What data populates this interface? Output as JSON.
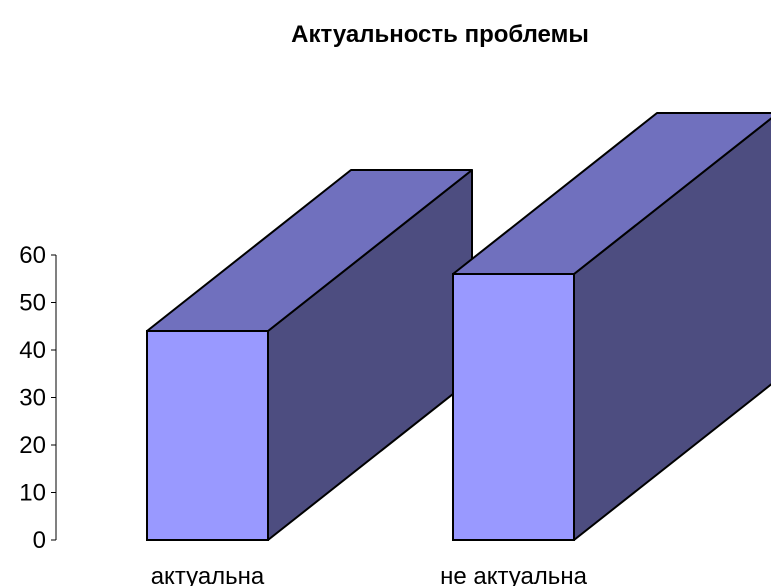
{
  "chart_data": {
    "type": "bar",
    "title": "Актуальность проблемы",
    "categories": [
      "актуальна",
      "не актуальна"
    ],
    "values": [
      44,
      56
    ],
    "ylim": [
      0,
      60
    ],
    "yticks": [
      0,
      10,
      20,
      30,
      40,
      50,
      60
    ],
    "grid": false,
    "legend": "none",
    "style": "3d",
    "colors": {
      "front": "#9999FF",
      "top": "#7070BE",
      "side": "#4D4D80",
      "outline": "#000000"
    }
  }
}
